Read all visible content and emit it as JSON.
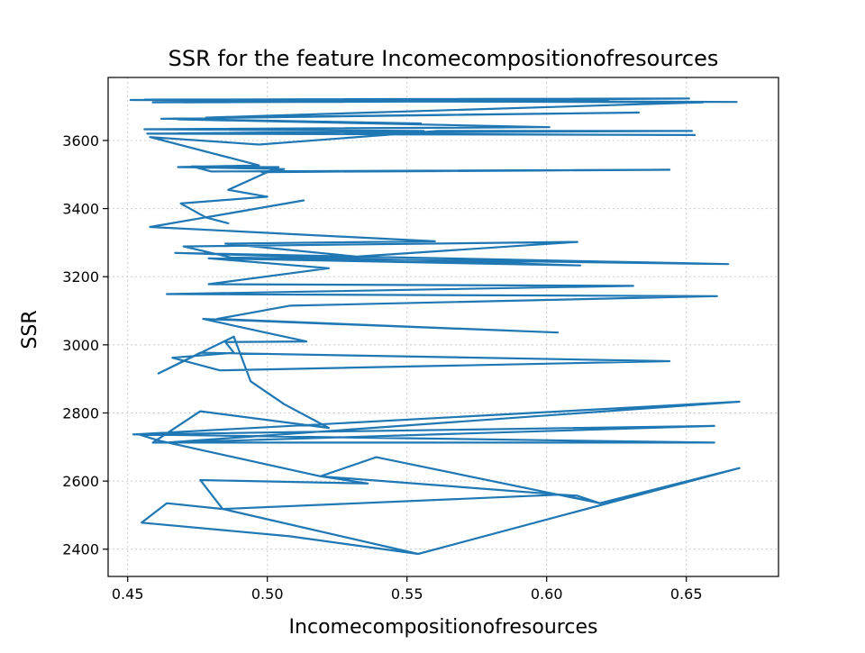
{
  "chart_data": {
    "type": "line",
    "title": "SSR for the feature Incomecompositionofresources",
    "xlabel": "Incomecompositionofresources",
    "ylabel": "SSR",
    "xlim": [
      0.443,
      0.683
    ],
    "ylim": [
      2320,
      3785
    ],
    "xticks": [
      0.45,
      0.5,
      0.55,
      0.6,
      0.65
    ],
    "xtick_labels": [
      "0.45",
      "0.50",
      "0.55",
      "0.60",
      "0.65"
    ],
    "yticks": [
      2400,
      2600,
      2800,
      3000,
      3200,
      3400,
      3600
    ],
    "ytick_labels": [
      "2400",
      "2600",
      "2800",
      "3000",
      "3200",
      "3400",
      "3600"
    ],
    "grid": true,
    "legend": "none",
    "color": "#1f77b4",
    "series": [
      {
        "x": [
          0.508,
          0.554,
          0.669,
          0.619,
          0.611,
          0.605,
          0.484,
          0.464,
          0.455,
          0.508,
          0.554,
          0.484,
          0.476,
          0.536,
          0.519,
          0.539,
          0.619,
          0.605,
          0.519,
          0.461,
          0.454,
          0.66,
          0.464,
          0.669,
          0.452,
          0.66,
          0.459,
          0.476,
          0.522,
          0.506,
          0.494,
          0.488,
          0.461,
          0.476,
          0.644,
          0.483,
          0.466,
          0.488,
          0.485,
          0.514,
          0.477,
          0.604,
          0.482,
          0.508,
          0.661,
          0.464,
          0.631,
          0.479,
          0.522,
          0.479,
          0.612,
          0.467,
          0.665,
          0.487,
          0.47,
          0.611,
          0.532,
          0.485,
          0.56,
          0.458,
          0.513,
          0.478,
          0.486,
          0.478,
          0.469,
          0.5,
          0.486,
          0.504,
          0.473,
          0.48,
          0.644,
          0.498,
          0.506,
          0.468,
          0.497,
          0.458,
          0.497,
          0.561,
          0.652,
          0.457,
          0.653,
          0.468,
          0.556,
          0.456,
          0.601,
          0.468,
          0.555,
          0.462,
          0.633,
          0.478,
          0.656,
          0.485,
          0.47,
          0.55,
          0.456,
          0.651,
          0.459,
          0.622,
          0.451,
          0.668,
          0.455
        ],
        "y": [
          2438,
          2386,
          2638,
          2535,
          2557,
          2560,
          2518,
          2535,
          2478,
          2438,
          2386,
          2518,
          2603,
          2593,
          2614,
          2670,
          2535,
          2560,
          2614,
          2719,
          2737,
          2762,
          2713,
          2833,
          2737,
          2713,
          2713,
          2805,
          2756,
          2826,
          2893,
          3024,
          2916,
          2977,
          2952,
          2925,
          2962,
          2977,
          3008,
          3010,
          3076,
          3036,
          3076,
          3115,
          3143,
          3149,
          3173,
          3178,
          3225,
          3254,
          3233,
          3270,
          3237,
          3256,
          3289,
          3302,
          3259,
          3297,
          3304,
          3346,
          3424,
          3374,
          3357,
          3374,
          3415,
          3435,
          3455,
          3522,
          3524,
          3509,
          3514,
          3507,
          3516,
          3522,
          3527,
          3610,
          3588,
          3628,
          3628,
          3620,
          3616,
          3621,
          3628,
          3633,
          3639,
          3662,
          3650,
          3664,
          3682,
          3667,
          3712,
          3716,
          3712,
          3714,
          3720,
          3723,
          3712,
          3719,
          3719,
          3713,
          3719
        ]
      }
    ]
  }
}
